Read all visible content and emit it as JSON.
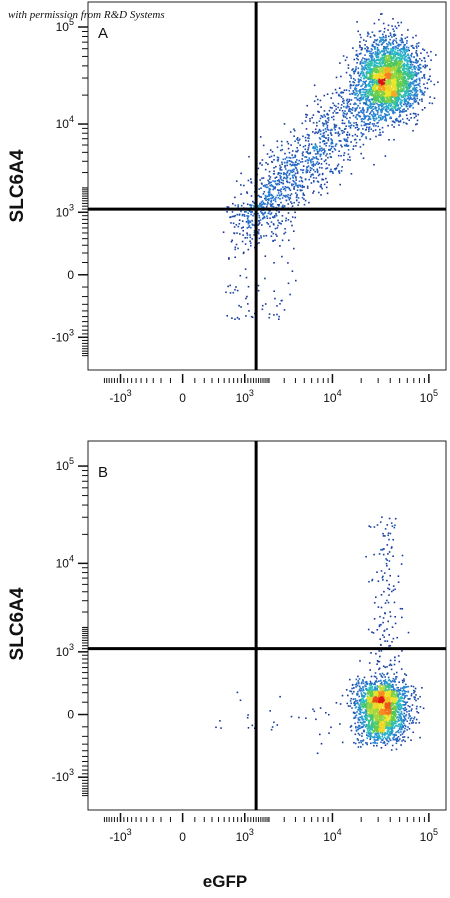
{
  "credit": "with permission from R&D Systems",
  "x_axis_label": "eGFP",
  "y_axis_label": "SLC6A4",
  "chart_data": [
    {
      "type": "scatter",
      "panel_label": "A",
      "xlabel": "eGFP",
      "ylabel": "SLC6A4",
      "scale": "biexponential",
      "x_ticks": [
        "-10^3",
        "0",
        "10^3",
        "10^4",
        "10^5"
      ],
      "y_ticks": [
        "10^5",
        "10^4",
        "10^3",
        "0",
        "-10^3"
      ],
      "gate_x": 1400,
      "gate_y": 1100,
      "populations": [
        {
          "center": [
            38000,
            30000
          ],
          "spread": "dense, red core",
          "correlation": "positive, diagonal from ~1000/1000 to ~60000/80000"
        }
      ]
    },
    {
      "type": "scatter",
      "panel_label": "B",
      "xlabel": "eGFP",
      "ylabel": "SLC6A4",
      "scale": "biexponential",
      "x_ticks": [
        "-10^3",
        "0",
        "10^3",
        "10^4",
        "10^5"
      ],
      "y_ticks": [
        "10^5",
        "10^4",
        "10^3",
        "0",
        "-10^3"
      ],
      "gate_x": 1400,
      "gate_y": 1100,
      "populations": [
        {
          "center": [
            32000,
            80
          ],
          "spread": "dense, red core",
          "correlation": "none, sparse tail upward to ~10^5"
        }
      ]
    }
  ]
}
